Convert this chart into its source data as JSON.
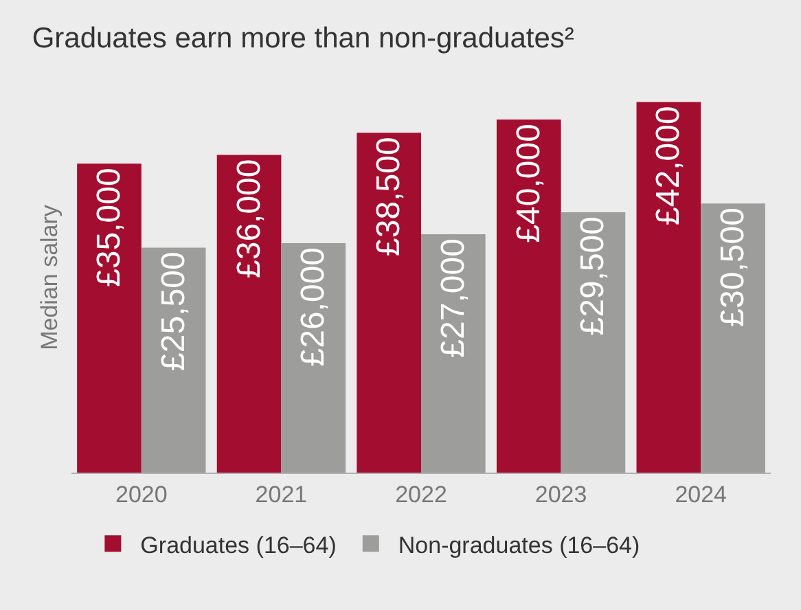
{
  "chart_data": {
    "type": "bar",
    "title": "Graduates earn more than non-graduates²",
    "ylabel": "Median salary",
    "categories": [
      "2020",
      "2021",
      "2022",
      "2023",
      "2024"
    ],
    "series": [
      {
        "name": "Graduates (16–64)",
        "color": "#a30d2f",
        "values": [
          35000,
          36000,
          38500,
          40000,
          42000
        ],
        "value_labels": [
          "£35,000",
          "£36,000",
          "£38,500",
          "£40,000",
          "£42,000"
        ]
      },
      {
        "name": "Non-graduates (16–64)",
        "color": "#9d9d9c",
        "values": [
          25500,
          26000,
          27000,
          29500,
          30500
        ],
        "value_labels": [
          "£25,500",
          "£26,000",
          "£27,000",
          "£29,500",
          "£30,500"
        ]
      }
    ],
    "legend": "bottom"
  }
}
